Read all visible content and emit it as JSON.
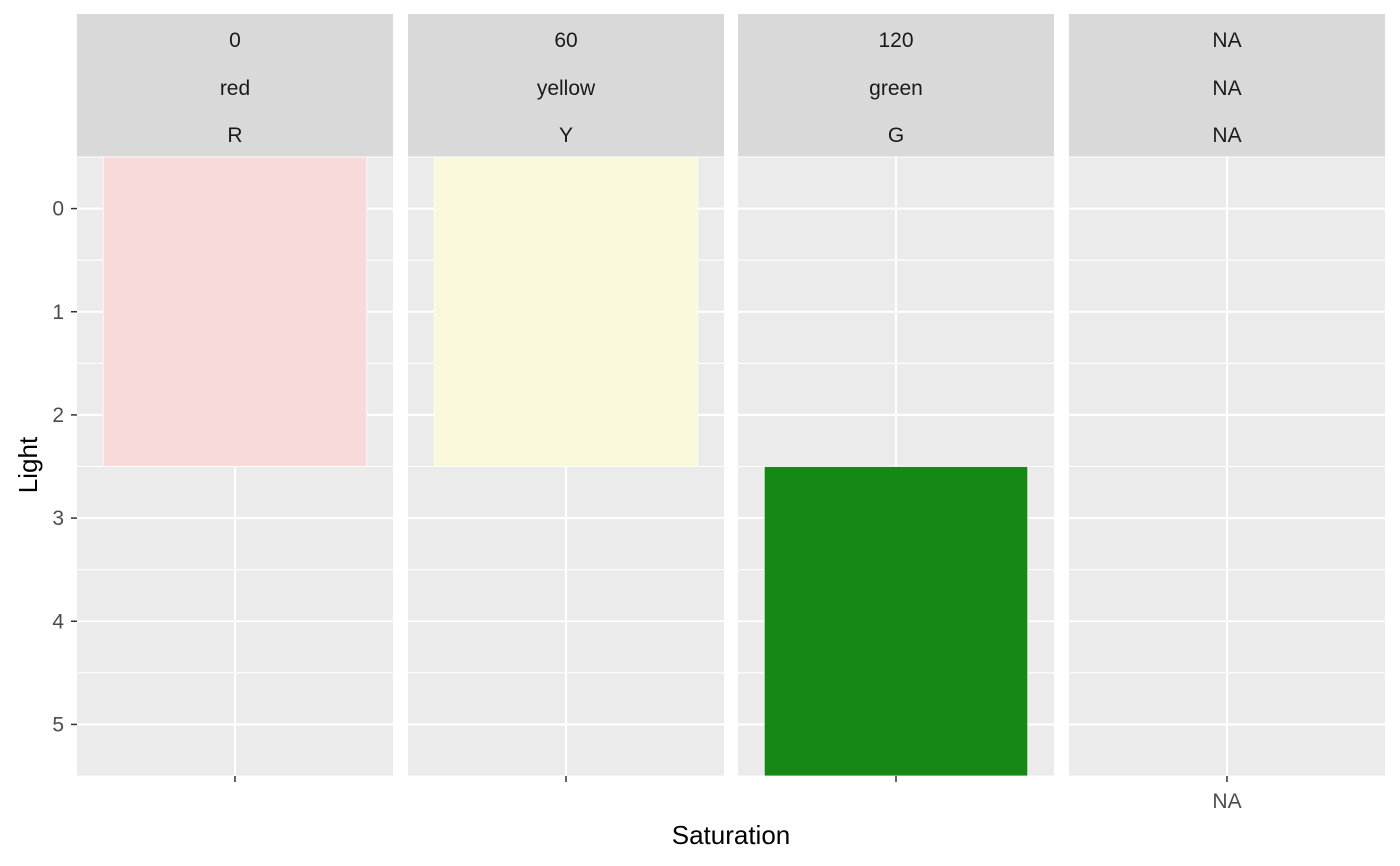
{
  "chart_data": {
    "type": "heatmap",
    "title": "",
    "xlabel": "Saturation",
    "ylabel": "Light",
    "y_axis": {
      "reversed": true,
      "ticks": [
        0,
        1,
        2,
        3,
        4,
        5
      ],
      "range": [
        -0.5,
        5.5
      ]
    },
    "grid": true,
    "panel_background": "#ebebeb",
    "strip_background": "#d9d9d9",
    "grid_color": "#ffffff",
    "facets": [
      {
        "strip": [
          "0",
          "red",
          "R"
        ],
        "x_tick": "",
        "tiles": [
          {
            "y_from": -0.5,
            "y_to": 2.5,
            "color": "#f8dadb"
          }
        ]
      },
      {
        "strip": [
          "60",
          "yellow",
          "Y"
        ],
        "x_tick": "",
        "tiles": [
          {
            "y_from": -0.5,
            "y_to": 2.5,
            "color": "#f9f8da"
          }
        ]
      },
      {
        "strip": [
          "120",
          "green",
          "G"
        ],
        "x_tick": "",
        "tiles": [
          {
            "y_from": 2.5,
            "y_to": 5.5,
            "color": "#158815"
          }
        ]
      },
      {
        "strip": [
          "NA",
          "NA",
          "NA"
        ],
        "x_tick": "NA",
        "tiles": []
      }
    ]
  }
}
